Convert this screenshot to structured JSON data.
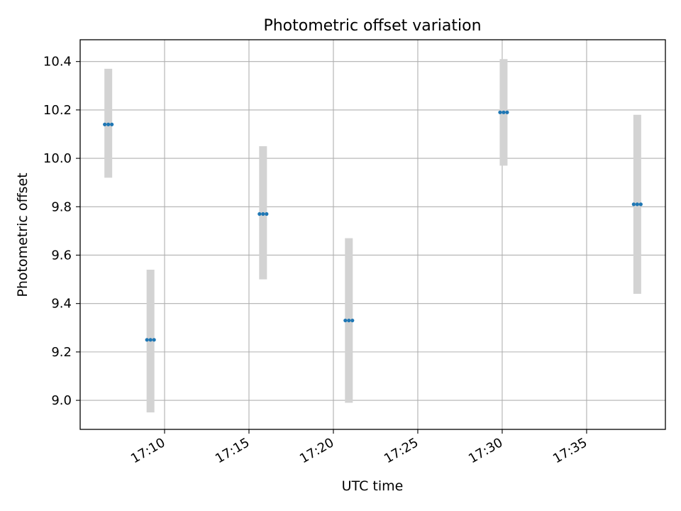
{
  "chart_data": {
    "type": "scatter",
    "title": "Photometric offset variation",
    "xlabel": "UTC time",
    "ylabel": "Photometric offset",
    "x_ticks": [
      "17:10",
      "17:15",
      "17:20",
      "17:25",
      "17:30",
      "17:35"
    ],
    "y_ticks": [
      "9.0",
      "9.2",
      "9.4",
      "9.6",
      "9.8",
      "10.0",
      "10.2",
      "10.4"
    ],
    "xlim": [
      "17:05:00",
      "17:39:40"
    ],
    "ylim": [
      8.88,
      10.49
    ],
    "grid": true,
    "series": [
      {
        "points": [
          {
            "x": "17:06:40",
            "y": 10.14,
            "yerr_low": 9.92,
            "yerr_high": 10.37
          },
          {
            "x": "17:09:10",
            "y": 9.25,
            "yerr_low": 8.95,
            "yerr_high": 9.54
          },
          {
            "x": "17:15:50",
            "y": 9.77,
            "yerr_low": 9.5,
            "yerr_high": 10.05
          },
          {
            "x": "17:20:55",
            "y": 9.33,
            "yerr_low": 8.99,
            "yerr_high": 9.67
          },
          {
            "x": "17:30:05",
            "y": 10.19,
            "yerr_low": 9.97,
            "yerr_high": 10.41
          },
          {
            "x": "17:38:00",
            "y": 9.81,
            "yerr_low": 9.44,
            "yerr_high": 10.18
          }
        ]
      }
    ],
    "colors": {
      "marker": "#1f77b4",
      "errorbar": "#d3d3d3",
      "grid": "#b0b0b0"
    }
  }
}
